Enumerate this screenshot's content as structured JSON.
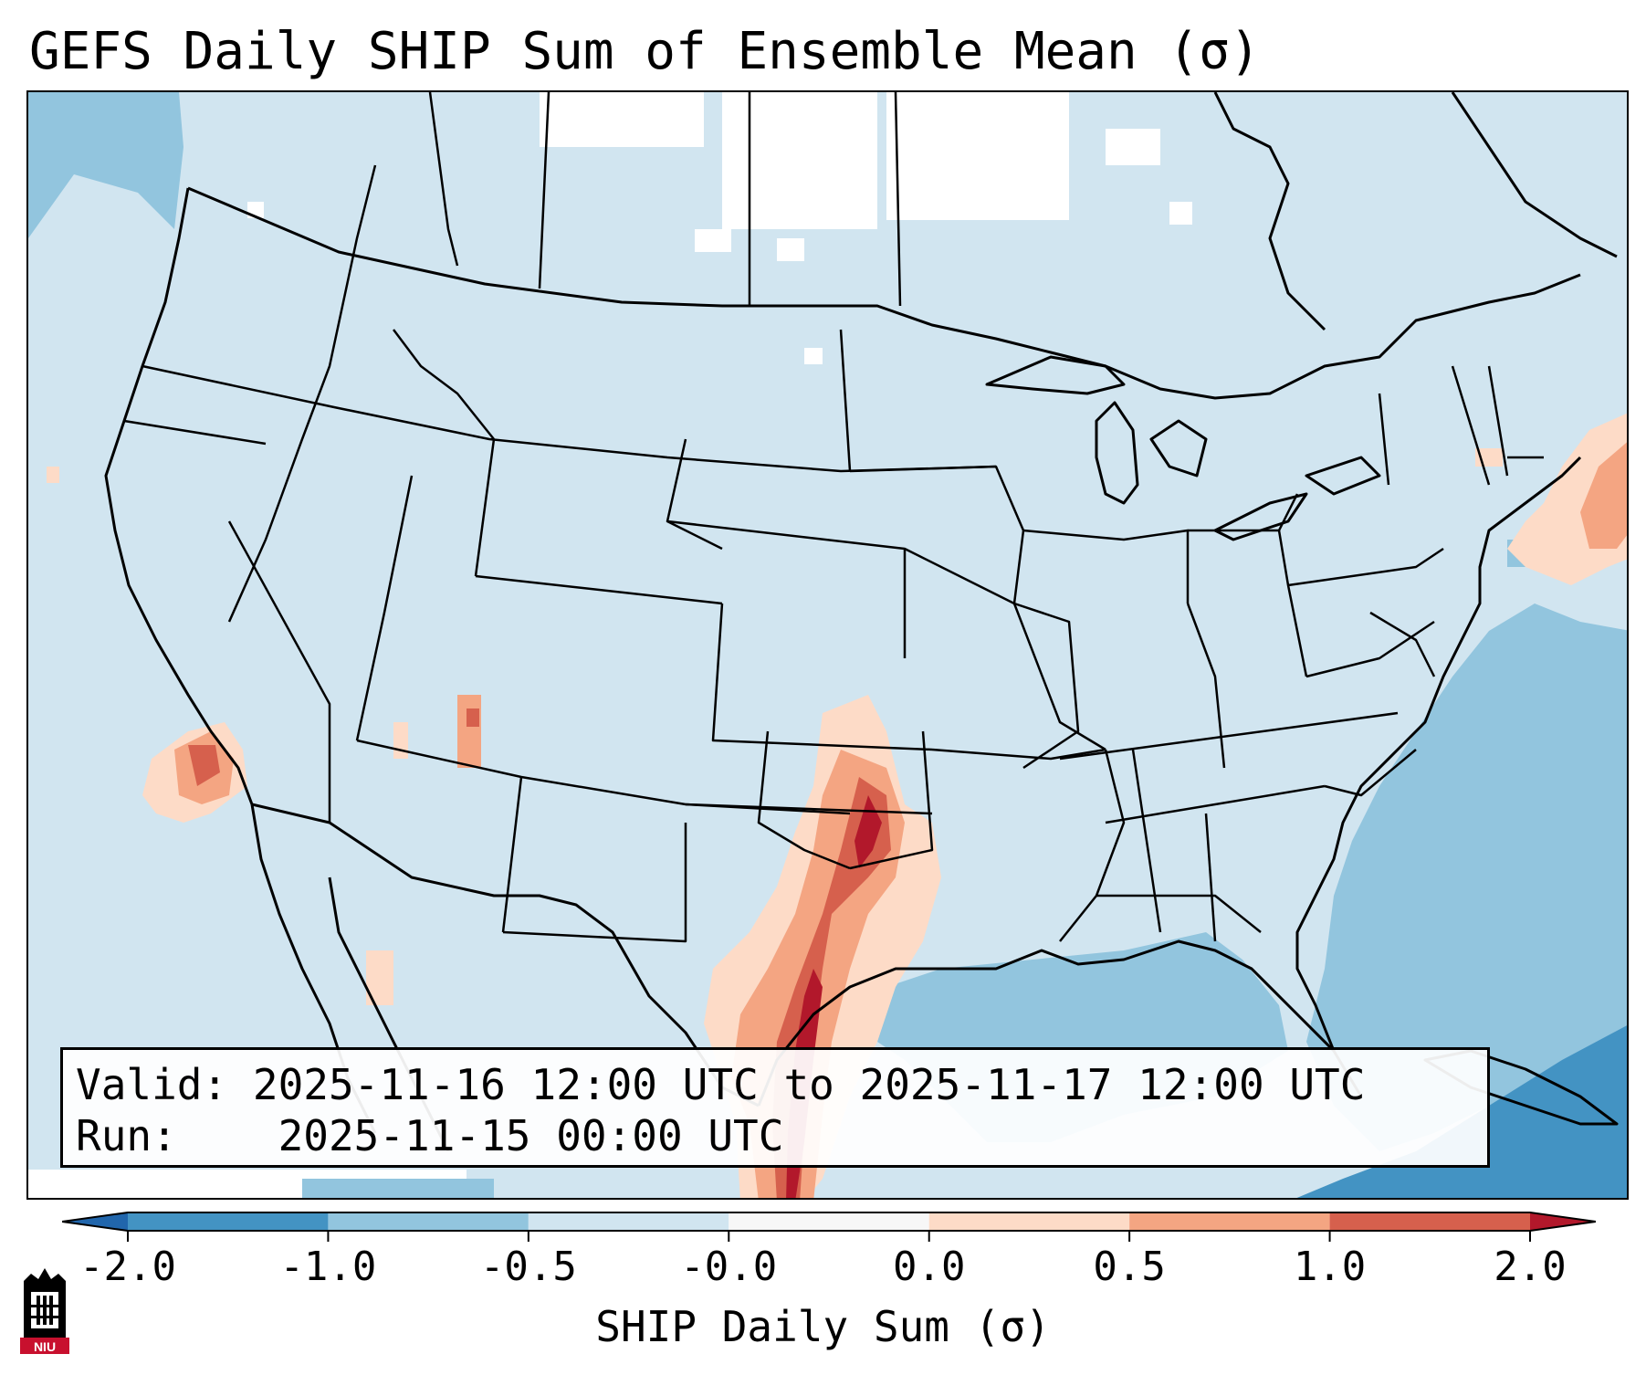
{
  "title": "GEFS Daily SHIP Sum of Ensemble Mean (σ)",
  "info": {
    "valid_label": "Valid:",
    "valid_value": "2025-11-16 12:00 UTC to 2025-11-17 12:00 UTC",
    "run_label": "Run:",
    "run_value": "2025-11-15 00:00 UTC"
  },
  "colorbar": {
    "label": "SHIP Daily Sum (σ)",
    "ticks": [
      "-2.0",
      "-1.0",
      "-0.5",
      "-0.0",
      "0.0",
      "0.5",
      "1.0",
      "2.0"
    ],
    "colors": [
      "#2166ac",
      "#4393c3",
      "#92c5de",
      "#d1e5f0",
      "#f7f7f7",
      "#fddbc7",
      "#f4a582",
      "#d6604d",
      "#b2182b"
    ]
  },
  "logo": {
    "text": "NIU"
  },
  "map": {
    "background_color": "#d1e5f0",
    "ocean_color": "#92c5de",
    "deep_ocean_color": "#4393c3",
    "highlight_color": "#b2182b"
  }
}
